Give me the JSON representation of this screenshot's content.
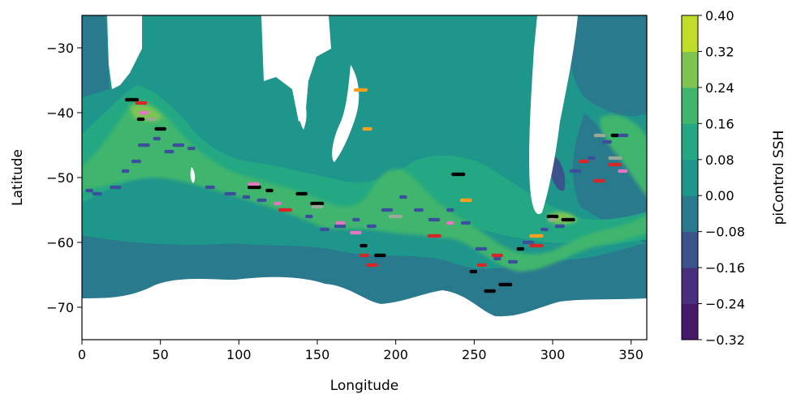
{
  "chart_data": {
    "type": "contour_map",
    "xlabel": "Longitude",
    "ylabel": "Latitude",
    "xlim": [
      0,
      360
    ],
    "ylim": [
      -75,
      -25
    ],
    "xticks": [
      0,
      50,
      100,
      150,
      200,
      250,
      300,
      350
    ],
    "yticks": [
      -30,
      -40,
      -50,
      -60,
      -70
    ],
    "ytick_labels": [
      "−30",
      "−40",
      "−50",
      "−60",
      "−70"
    ],
    "colorbar": {
      "label": "piControl SSH",
      "levels": [
        -0.32,
        -0.24,
        -0.16,
        -0.08,
        0.0,
        0.08,
        0.16,
        0.24,
        0.32,
        0.4
      ],
      "level_labels": [
        "−0.32",
        "−0.24",
        "−0.16",
        "−0.08",
        "0.00",
        "0.08",
        "0.16",
        "0.24",
        "0.32",
        "0.40"
      ],
      "colors": [
        "#46196b",
        "#482f7e",
        "#3a538b",
        "#2a7a8e",
        "#1f968b",
        "#23a883",
        "#3fb56d",
        "#7ec453",
        "#c2dc2a"
      ]
    },
    "land_color": "#ffffff",
    "background_level_color": "#1f968b",
    "front_band": {
      "description_color": "#3fb56d",
      "center_lat": [
        [
          0,
          -50
        ],
        [
          20,
          -46
        ],
        [
          40,
          -41
        ],
        [
          60,
          -44
        ],
        [
          80,
          -50
        ],
        [
          100,
          -51
        ],
        [
          130,
          -53
        ],
        [
          150,
          -55
        ],
        [
          165,
          -52
        ],
        [
          180,
          -50
        ],
        [
          195,
          -49
        ],
        [
          210,
          -52
        ],
        [
          230,
          -55
        ],
        [
          250,
          -60
        ],
        [
          270,
          -61
        ],
        [
          290,
          -58
        ],
        [
          310,
          -56
        ],
        [
          330,
          -48
        ],
        [
          350,
          -45
        ],
        [
          360,
          -47
        ]
      ]
    },
    "eddy_tracks": [
      {
        "color": "#3b4f9b",
        "points": [
          [
            5,
            -52
          ],
          [
            10,
            -52.5
          ],
          [
            22,
            -51.5
          ],
          [
            28,
            -49
          ],
          [
            35,
            -47.5
          ],
          [
            40,
            -45
          ],
          [
            48,
            -44
          ],
          [
            56,
            -46
          ],
          [
            62,
            -45
          ],
          [
            70,
            -45.5
          ],
          [
            82,
            -51.5
          ],
          [
            95,
            -52.5
          ],
          [
            105,
            -53
          ],
          [
            115,
            -53.5
          ],
          [
            130,
            -55
          ],
          [
            145,
            -56
          ],
          [
            155,
            -58
          ],
          [
            165,
            -57.5
          ],
          [
            175,
            -56.5
          ],
          [
            185,
            -57.5
          ],
          [
            195,
            -55
          ],
          [
            205,
            -53
          ],
          [
            215,
            -55
          ],
          [
            225,
            -56.5
          ],
          [
            235,
            -55
          ],
          [
            245,
            -57
          ],
          [
            255,
            -61
          ],
          [
            265,
            -62.5
          ],
          [
            275,
            -63
          ],
          [
            285,
            -60
          ],
          [
            295,
            -58
          ],
          [
            305,
            -57.5
          ],
          [
            315,
            -49
          ],
          [
            325,
            -47
          ],
          [
            335,
            -44.5
          ],
          [
            345,
            -43.5
          ]
        ]
      },
      {
        "color": "#000000",
        "points": [
          [
            32,
            -38
          ],
          [
            38,
            -41
          ],
          [
            50,
            -42.5
          ],
          [
            110,
            -51.5
          ],
          [
            120,
            -52
          ],
          [
            140,
            -52.5
          ],
          [
            150,
            -54
          ],
          [
            180,
            -60.5
          ],
          [
            190,
            -62
          ],
          [
            240,
            -49.5
          ],
          [
            250,
            -64.5
          ],
          [
            260,
            -67.5
          ],
          [
            270,
            -66.5
          ],
          [
            280,
            -61
          ],
          [
            300,
            -56
          ],
          [
            310,
            -56.5
          ],
          [
            340,
            -43.5
          ]
        ]
      },
      {
        "color": "#d62728",
        "points": [
          [
            38,
            -38.5
          ],
          [
            130,
            -55
          ],
          [
            180,
            -62
          ],
          [
            185,
            -63.5
          ],
          [
            225,
            -59
          ],
          [
            255,
            -63.5
          ],
          [
            265,
            -62
          ],
          [
            290,
            -60.5
          ],
          [
            320,
            -47.5
          ],
          [
            330,
            -50.5
          ],
          [
            340,
            -48
          ]
        ]
      },
      {
        "color": "#e377c2",
        "points": [
          [
            40,
            -40
          ],
          [
            110,
            -51
          ],
          [
            125,
            -54
          ],
          [
            165,
            -57
          ],
          [
            175,
            -58.5
          ],
          [
            235,
            -57
          ],
          [
            345,
            -49
          ]
        ]
      },
      {
        "color": "#9aa89a",
        "points": [
          [
            45,
            -41
          ],
          [
            150,
            -54.5
          ],
          [
            200,
            -56
          ],
          [
            300,
            -56.5
          ],
          [
            330,
            -43.5
          ],
          [
            340,
            -47
          ]
        ]
      },
      {
        "color": "#ff9f1c",
        "points": [
          [
            178,
            -36.5
          ],
          [
            182,
            -42.5
          ],
          [
            245,
            -53.5
          ],
          [
            290,
            -59
          ]
        ]
      }
    ]
  }
}
